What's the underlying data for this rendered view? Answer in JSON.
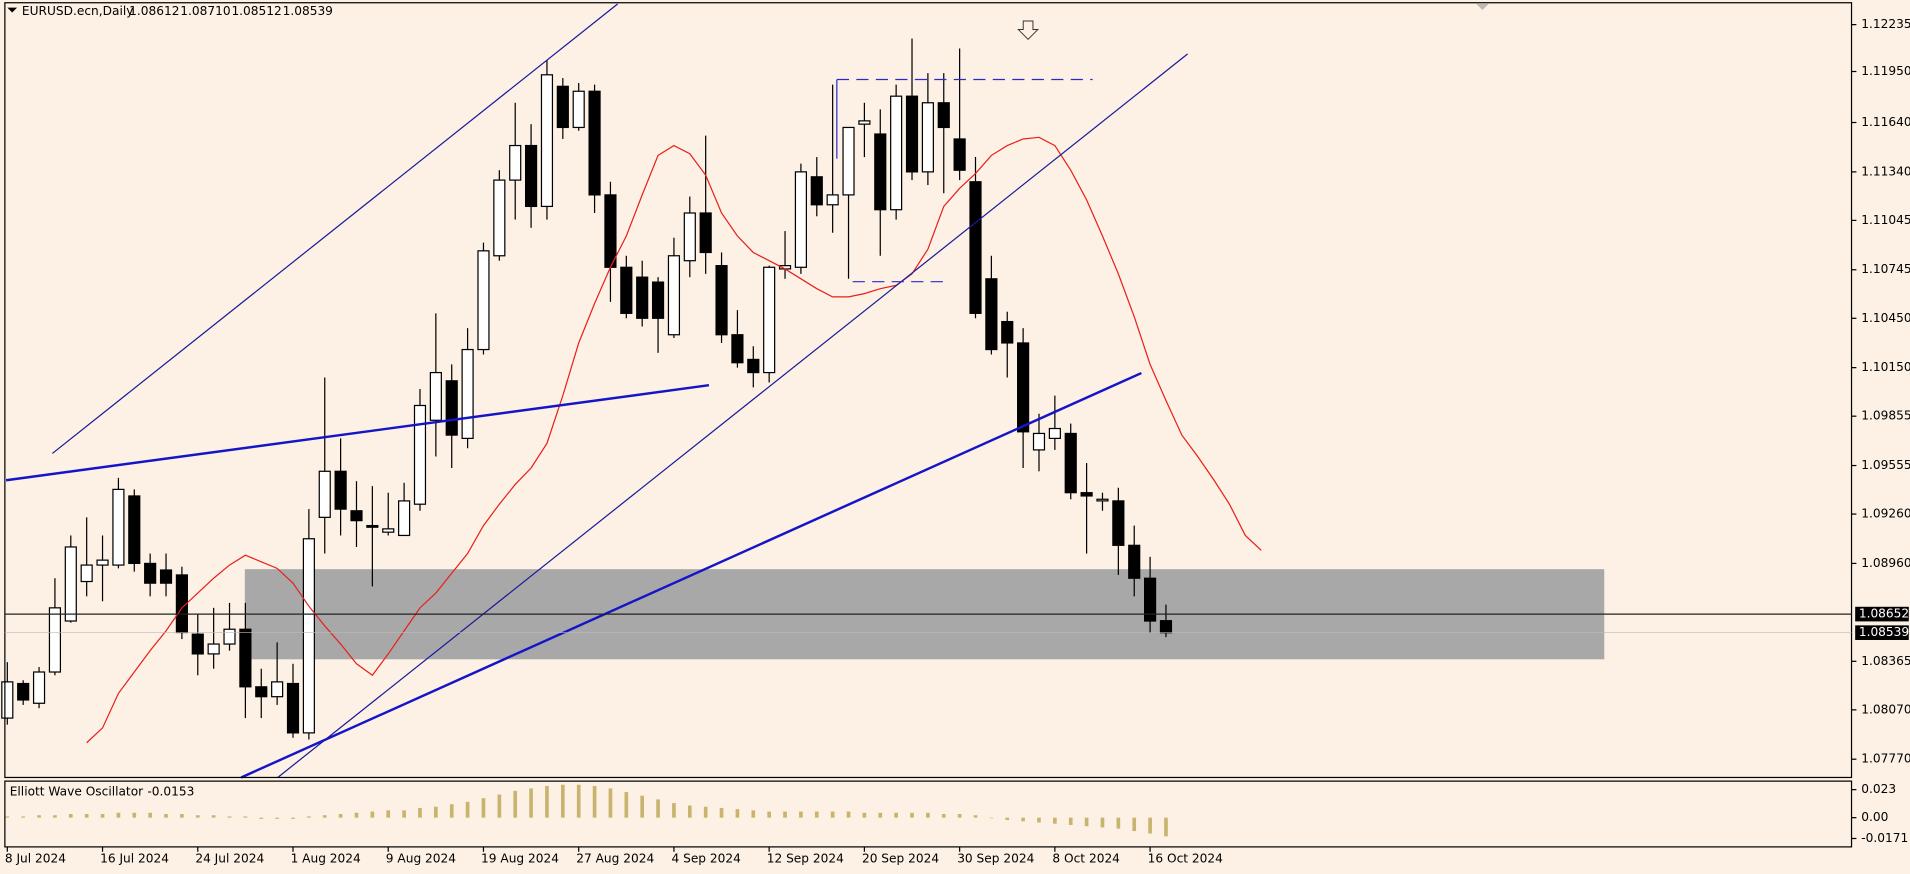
{
  "chart_data": {
    "type": "candlestick",
    "title": "EURUSD.ecn,Daily",
    "ohlc_labels": [
      "1.08612",
      "1.08710",
      "1.08512",
      "1.08539"
    ],
    "categories": [
      "8 Jul 2024",
      null,
      null,
      null,
      null,
      null,
      "16 Jul 2024",
      null,
      null,
      null,
      null,
      null,
      "24 Jul 2024",
      null,
      null,
      null,
      null,
      null,
      "1 Aug 2024",
      null,
      null,
      null,
      null,
      null,
      "9 Aug 2024",
      null,
      null,
      null,
      null,
      null,
      "19 Aug 2024",
      null,
      null,
      null,
      null,
      null,
      "27 Aug 2024",
      null,
      null,
      null,
      null,
      null,
      "4 Sep 2024",
      null,
      null,
      null,
      null,
      null,
      "12 Sep 2024",
      null,
      null,
      null,
      null,
      null,
      "20 Sep 2024",
      null,
      null,
      null,
      null,
      null,
      "30 Sep 2024",
      null,
      null,
      null,
      null,
      null,
      "8 Oct 2024",
      null,
      null,
      null,
      null,
      null,
      "16 Oct 2024",
      null,
      null,
      null,
      null,
      null,
      null,
      null
    ],
    "open": [
      1.0802,
      1.0823,
      1.0811,
      1.083,
      1.0861,
      1.0885,
      1.0895,
      1.0895,
      1.0937,
      1.0896,
      1.0892,
      1.0889,
      1.0853,
      1.0841,
      1.0847,
      1.0856,
      1.0821,
      1.0815,
      1.0823,
      1.0793,
      1.0924,
      1.0952,
      1.0928,
      1.0919,
      1.0915,
      1.0913,
      1.0932,
      1.0983,
      1.1007,
      1.0972,
      1.1026,
      1.1083,
      1.1129,
      1.115,
      1.1113,
      1.1186,
      1.1161,
      1.1183,
      1.112,
      1.1076,
      1.107,
      1.1067,
      1.1035,
      1.108,
      1.1109,
      1.1077,
      1.1035,
      1.102,
      1.1012,
      1.1075,
      1.1076,
      1.1131,
      1.1114,
      1.112,
      1.1163,
      1.1157,
      1.1111,
      1.118,
      1.1134,
      1.1176,
      1.1154,
      1.1128,
      1.1069,
      1.1043,
      1.103,
      1.0965,
      1.0972,
      1.0975,
      1.0939,
      1.0934,
      1.0934,
      1.0907,
      1.0887,
      1.08612,
      null,
      null,
      null,
      null,
      null,
      null
    ],
    "high": [
      1.0836,
      1.0825,
      1.0833,
      1.0887,
      1.0913,
      1.0924,
      1.0913,
      1.0948,
      1.0941,
      1.0902,
      1.0902,
      1.0894,
      1.0865,
      1.0869,
      1.0872,
      1.0872,
      1.0832,
      1.0848,
      1.0835,
      1.0929,
      1.1009,
      1.0972,
      1.0946,
      1.0943,
      1.0939,
      1.0945,
      1.1002,
      1.1048,
      1.1017,
      1.1039,
      1.1091,
      1.1135,
      1.1176,
      1.1163,
      1.1202,
      1.1191,
      1.1188,
      1.1187,
      1.1128,
      1.1083,
      1.108,
      1.107,
      1.1094,
      1.1119,
      1.1156,
      1.1085,
      1.105,
      1.1028,
      1.1077,
      1.1098,
      1.1139,
      1.1143,
      1.1187,
      1.1161,
      1.1176,
      1.1172,
      1.1187,
      1.1215,
      1.1194,
      1.1194,
      1.1209,
      1.1143,
      1.1083,
      1.1049,
      1.1039,
      1.0987,
      1.0998,
      1.0981,
      1.0957,
      1.0939,
      1.0942,
      1.0919,
      1.09,
      1.0871,
      null,
      null,
      null,
      null,
      null,
      null
    ],
    "low": [
      1.0798,
      1.081,
      1.0808,
      1.0828,
      1.086,
      1.0876,
      1.0873,
      1.0893,
      1.0891,
      1.0876,
      1.0876,
      1.085,
      1.0828,
      1.0832,
      1.0843,
      1.0802,
      1.0802,
      1.081,
      1.079,
      1.0789,
      1.0902,
      1.0913,
      1.0906,
      1.0882,
      1.0913,
      1.0913,
      1.0928,
      1.0961,
      1.0954,
      1.0966,
      1.1023,
      1.108,
      1.1105,
      1.11,
      1.1105,
      1.1154,
      1.1159,
      1.1109,
      1.1055,
      1.1045,
      1.104,
      1.1024,
      1.1033,
      1.107,
      1.1072,
      1.103,
      1.1015,
      1.1003,
      1.1006,
      1.1069,
      1.1072,
      1.1107,
      1.1097,
      1.1069,
      1.1143,
      1.1083,
      1.1105,
      1.1129,
      1.1126,
      1.1121,
      1.1129,
      1.1045,
      1.1023,
      1.1009,
      1.0954,
      1.0952,
      1.0965,
      1.0935,
      1.0902,
      1.0928,
      1.0889,
      1.0876,
      1.0854,
      1.08512,
      null,
      null,
      null,
      null,
      null,
      null
    ],
    "close": [
      1.0824,
      1.0813,
      1.083,
      1.0869,
      1.0906,
      1.0895,
      1.0898,
      1.0941,
      1.0896,
      1.0884,
      1.0884,
      1.0854,
      1.0841,
      1.0847,
      1.0856,
      1.0821,
      1.0815,
      1.0824,
      1.0793,
      1.0911,
      1.0952,
      1.0929,
      1.0922,
      1.0918,
      1.0917,
      1.0934,
      1.0992,
      1.1012,
      1.0974,
      1.1026,
      1.1086,
      1.1129,
      1.115,
      1.1113,
      1.1193,
      1.1161,
      1.1183,
      1.112,
      1.1076,
      1.1048,
      1.1045,
      1.1045,
      1.1083,
      1.1109,
      1.1085,
      1.1035,
      1.1018,
      1.1012,
      1.1076,
      1.1077,
      1.1134,
      1.1114,
      1.112,
      1.1161,
      1.1165,
      1.1111,
      1.118,
      1.1134,
      1.1176,
      1.1161,
      1.1135,
      1.1048,
      1.1026,
      1.103,
      1.0976,
      1.0975,
      1.0978,
      1.0939,
      1.0937,
      1.0935,
      1.0907,
      1.0887,
      1.0861,
      1.08539,
      null,
      null,
      null,
      null,
      null,
      null
    ],
    "up_color": "#ffffff",
    "down_color": "#000000",
    "ma_color": "#e8201a",
    "ma_values": [
      null,
      null,
      null,
      null,
      null,
      1.0787,
      1.0796,
      1.0817,
      1.083,
      1.0843,
      1.0855,
      1.0869,
      1.0878,
      1.0887,
      1.0895,
      1.0901,
      1.0897,
      1.0893,
      1.0884,
      1.087,
      1.0858,
      1.0847,
      1.0835,
      1.0828,
      1.0841,
      1.0855,
      1.0869,
      1.0878,
      1.089,
      1.0902,
      1.0919,
      1.0932,
      1.0944,
      1.0954,
      1.0969,
      1.0998,
      1.103,
      1.1054,
      1.1076,
      1.1095,
      1.112,
      1.1144,
      1.115,
      1.1145,
      1.1132,
      1.1109,
      1.1095,
      1.1085,
      1.108,
      1.1075,
      1.1069,
      1.1063,
      1.1058,
      1.1058,
      1.106,
      1.1063,
      1.1065,
      1.1072,
      1.1087,
      1.1113,
      1.1124,
      1.1133,
      1.1144,
      1.115,
      1.1154,
      1.1155,
      1.115,
      1.1135,
      1.1117,
      1.1095,
      1.1072,
      1.1046,
      1.1017,
      1.0995,
      1.0974,
      1.0961,
      1.0947,
      1.0932,
      1.0913,
      1.0904
    ],
    "ylim": [
      1.07659,
      1.12368
    ],
    "yticks": [
      1.12235,
      {
        "value": 1.1195,
        "label": "1.11950"
      },
      {
        "value": 1.1164,
        "label": "1.11640"
      },
      {
        "value": 1.1134,
        "label": "1.11340"
      },
      1.11045,
      1.10745,
      {
        "value": 1.1045,
        "label": "1.10450"
      },
      {
        "value": 1.1015,
        "label": "1.10150"
      },
      1.09855,
      1.09555,
      {
        "value": 1.0926,
        "label": "1.09260"
      },
      {
        "value": 1.0896,
        "label": "1.08960"
      },
      1.08365,
      {
        "value": 1.0807,
        "label": "1.08070"
      },
      {
        "value": 1.0777,
        "label": "1.07770"
      }
    ],
    "hline": 1.08652,
    "oscillator": {
      "name": "Elliott Wave Oscillator",
      "color": "#c8b46e",
      "values": [
        0.001,
        0.001,
        0.002,
        0.002,
        0.003,
        0.003,
        0.003,
        0.004,
        0.004,
        0.004,
        0.003,
        0.003,
        0.002,
        0.002,
        0.001,
        0.001,
        -0.001,
        -0.001,
        -0.001,
        0.001,
        0.002,
        0.003,
        0.004,
        0.005,
        0.006,
        0.006,
        0.008,
        0.009,
        0.011,
        0.013,
        0.016,
        0.019,
        0.022,
        0.024,
        0.026,
        0.027,
        0.027,
        0.026,
        0.024,
        0.021,
        0.018,
        0.015,
        0.012,
        0.01,
        0.009,
        0.008,
        0.007,
        0.006,
        0.005,
        0.005,
        0.005,
        0.005,
        0.005,
        0.005,
        0.004,
        0.004,
        0.004,
        0.004,
        0.004,
        0.003,
        0.003,
        0.002,
        0.0,
        -0.002,
        -0.003,
        -0.004,
        -0.005,
        -0.006,
        -0.007,
        -0.008,
        -0.009,
        -0.011,
        -0.013,
        -0.0153,
        null,
        null,
        null,
        null,
        null,
        null
      ],
      "ylim": [
        -0.024,
        0.03
      ],
      "yticks": [
        0.023,
        {
          "value": 0,
          "label": "0.00"
        },
        -0.0171
      ]
    }
  }
}
